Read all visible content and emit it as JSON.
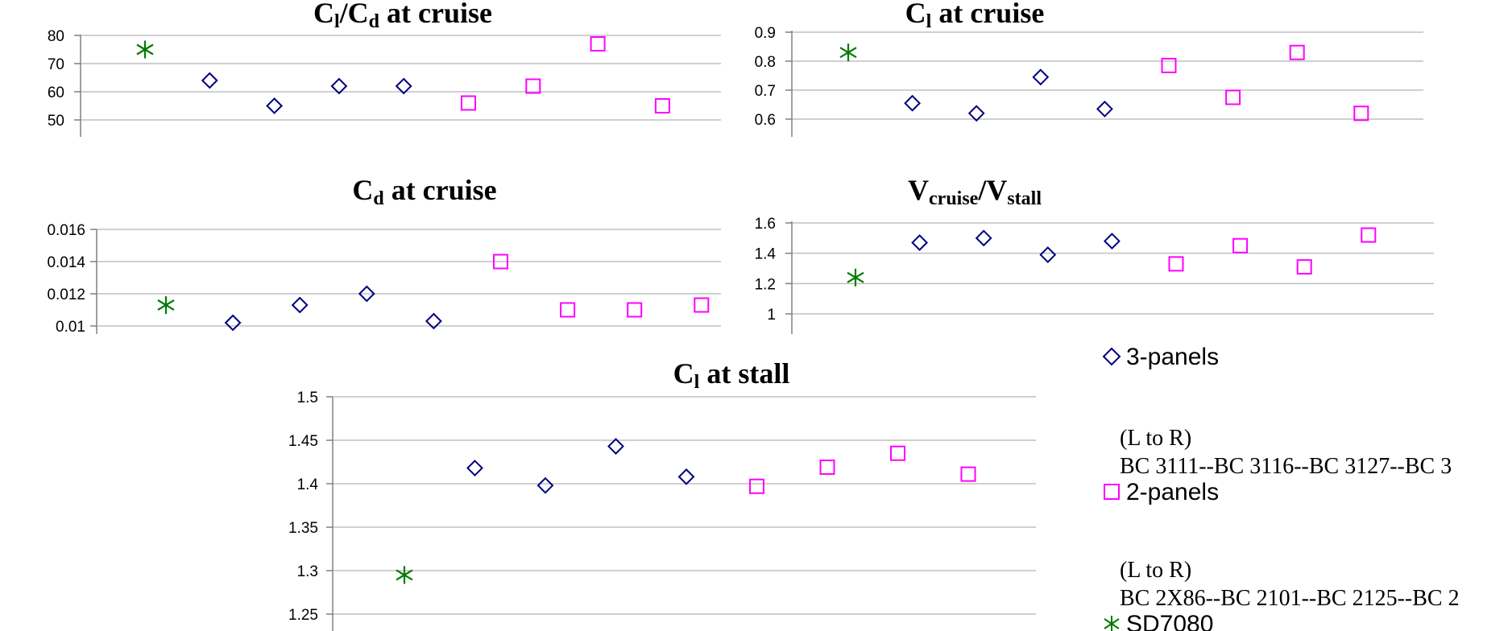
{
  "chart_data": [
    {
      "type": "scatter",
      "title_main": "C",
      "title_sub": "l",
      "title_main2": "/C",
      "title_sub2": "d",
      "title_rest": " at cruise",
      "yticks": [
        "80",
        "70",
        "60",
        "50"
      ],
      "ylim": [
        40,
        85
      ],
      "grid": true,
      "series": [
        {
          "name": "SD7080",
          "x": [
            1
          ],
          "y": [
            75
          ]
        },
        {
          "name": "3-panels",
          "x": [
            2,
            3,
            4,
            5
          ],
          "y": [
            64,
            55,
            62,
            62
          ]
        },
        {
          "name": "2-panels",
          "x": [
            6,
            7,
            8,
            9
          ],
          "y": [
            56,
            62,
            77,
            55
          ]
        }
      ]
    },
    {
      "type": "scatter",
      "title_main": "C",
      "title_sub": "l",
      "title_rest": " at cruise",
      "yticks": [
        "0.9",
        "0.8",
        "0.7",
        "0.6"
      ],
      "ylim": [
        0.5,
        0.92
      ],
      "grid": true,
      "series": [
        {
          "name": "SD7080",
          "x": [
            1
          ],
          "y": [
            0.83
          ]
        },
        {
          "name": "3-panels",
          "x": [
            2,
            3,
            4,
            5
          ],
          "y": [
            0.655,
            0.62,
            0.745,
            0.635
          ]
        },
        {
          "name": "2-panels",
          "x": [
            6,
            7,
            8,
            9
          ],
          "y": [
            0.785,
            0.675,
            0.83,
            0.62
          ]
        }
      ]
    },
    {
      "type": "scatter",
      "title_main": "C",
      "title_sub": "d",
      "title_rest": " at cruise",
      "yticks": [
        "0.016",
        "0.014",
        "0.012",
        "0.01"
      ],
      "ylim": [
        0.0096,
        0.0162
      ],
      "grid": true,
      "series": [
        {
          "name": "SD7080",
          "x": [
            1
          ],
          "y": [
            0.0113
          ]
        },
        {
          "name": "3-panels",
          "x": [
            2,
            3,
            4,
            5
          ],
          "y": [
            0.0102,
            0.0113,
            0.012,
            0.0103
          ]
        },
        {
          "name": "2-panels",
          "x": [
            6,
            7,
            8,
            9
          ],
          "y": [
            0.014,
            0.011,
            0.011,
            0.0113
          ]
        }
      ]
    },
    {
      "type": "scatter",
      "title_main": "V",
      "title_sub": "cruise",
      "title_main2": "/V",
      "title_sub2": "stall",
      "title_rest": "",
      "yticks": [
        "1.6",
        "1.4",
        "1.2",
        "1"
      ],
      "ylim": [
        0.9,
        1.62
      ],
      "grid": true,
      "series": [
        {
          "name": "SD7080",
          "x": [
            1
          ],
          "y": [
            1.24
          ]
        },
        {
          "name": "3-panels",
          "x": [
            2,
            3,
            4,
            5
          ],
          "y": [
            1.47,
            1.5,
            1.39,
            1.48
          ]
        },
        {
          "name": "2-panels",
          "x": [
            6,
            7,
            8,
            9
          ],
          "y": [
            1.33,
            1.45,
            1.31,
            1.52
          ]
        }
      ]
    },
    {
      "type": "scatter",
      "title_main": "C",
      "title_sub": "l",
      "title_rest": " at stall",
      "yticks": [
        "1.5",
        "1.45",
        "1.4",
        "1.35",
        "1.3",
        "1.25"
      ],
      "ylim": [
        1.25,
        1.5
      ],
      "grid": true,
      "series": [
        {
          "name": "SD7080",
          "x": [
            1
          ],
          "y": [
            1.295
          ]
        },
        {
          "name": "3-panels",
          "x": [
            2,
            3,
            4,
            5
          ],
          "y": [
            1.418,
            1.398,
            1.443,
            1.408
          ]
        },
        {
          "name": "2-panels",
          "x": [
            6,
            7,
            8,
            9
          ],
          "y": [
            1.397,
            1.419,
            1.435,
            1.411
          ]
        }
      ]
    }
  ],
  "colors": {
    "three_panels": "#000080",
    "two_panels": "#ff00ff",
    "sd7080": "#007a00",
    "grid": "#c0c0c0",
    "axis": "#808080"
  },
  "legend": {
    "three_panels_label": "3-panels",
    "three_panels_note_1": "(L to R)",
    "three_panels_note_2": "BC 3111--BC 3116--BC 3127--BC 3",
    "two_panels_label": "2-panels",
    "two_panels_note_1": "(L to R)",
    "two_panels_note_2": "BC 2X86--BC 2101--BC 2125--BC 2",
    "sd7080_label": "SD7080"
  }
}
